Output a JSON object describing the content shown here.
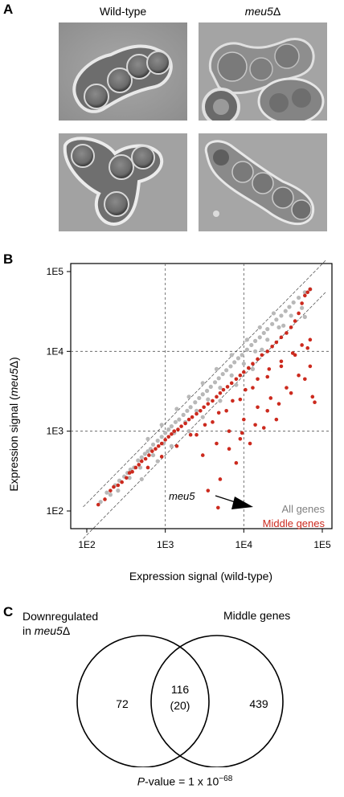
{
  "panel_a": {
    "letter": "A",
    "col1_title": "Wild-type",
    "col2_title_main": "meu5",
    "col2_title_suffix": "Δ"
  },
  "panel_b": {
    "letter": "B",
    "annotation": "meu5",
    "legend_all": "All genes",
    "legend_middle": "Middle genes",
    "colors": {
      "all": "#b8b8b8",
      "middle": "#cc2a1e"
    }
  },
  "chart_data": {
    "type": "scatter",
    "x_scale": "log",
    "y_scale": "log",
    "xlim": [
      100,
      100000
    ],
    "ylim": [
      100,
      100000
    ],
    "xlabel": "Expression signal (wild-type)",
    "ylabel_main": "Expression signal (",
    "ylabel_italic": "meu5",
    "ylabel_end": "Δ)",
    "x_ticks": [
      "1E2",
      "1E3",
      "1E4",
      "1E5"
    ],
    "y_ticks": [
      "1E2",
      "1E3",
      "1E4",
      "1E5"
    ],
    "series": [
      {
        "name": "All genes",
        "color": "#b8b8b8",
        "points": [
          [
            150,
            130
          ],
          [
            180,
            170
          ],
          [
            200,
            160
          ],
          [
            230,
            210
          ],
          [
            260,
            240
          ],
          [
            300,
            270
          ],
          [
            330,
            300
          ],
          [
            360,
            330
          ],
          [
            400,
            350
          ],
          [
            450,
            430
          ],
          [
            500,
            470
          ],
          [
            550,
            520
          ],
          [
            600,
            560
          ],
          [
            650,
            600
          ],
          [
            700,
            680
          ],
          [
            800,
            760
          ],
          [
            900,
            850
          ],
          [
            1000,
            950
          ],
          [
            1100,
            1050
          ],
          [
            1200,
            1150
          ],
          [
            1350,
            1300
          ],
          [
            1500,
            1400
          ],
          [
            1700,
            1600
          ],
          [
            1900,
            1800
          ],
          [
            2100,
            2000
          ],
          [
            2400,
            2300
          ],
          [
            2700,
            2600
          ],
          [
            3000,
            2900
          ],
          [
            3400,
            3200
          ],
          [
            3800,
            3600
          ],
          [
            4300,
            4100
          ],
          [
            4800,
            4600
          ],
          [
            5400,
            5200
          ],
          [
            6000,
            5800
          ],
          [
            6800,
            6500
          ],
          [
            7600,
            7300
          ],
          [
            8500,
            8200
          ],
          [
            9500,
            9000
          ],
          [
            11000,
            10500
          ],
          [
            12500,
            12000
          ],
          [
            14000,
            13500
          ],
          [
            16000,
            15000
          ],
          [
            18000,
            17000
          ],
          [
            20000,
            19000
          ],
          [
            23000,
            22000
          ],
          [
            26000,
            25000
          ],
          [
            30000,
            28000
          ],
          [
            34000,
            32000
          ],
          [
            38000,
            36000
          ],
          [
            43000,
            41000
          ],
          [
            50000,
            47000
          ],
          [
            60000,
            55000
          ],
          [
            70000,
            60000
          ],
          [
            250,
            180
          ],
          [
            350,
            260
          ],
          [
            480,
            350
          ],
          [
            700,
            500
          ],
          [
            950,
            700
          ],
          [
            1300,
            950
          ],
          [
            1800,
            1300
          ],
          [
            2500,
            1800
          ],
          [
            3500,
            2500
          ],
          [
            5000,
            3500
          ],
          [
            7000,
            5000
          ],
          [
            10000,
            7000
          ],
          [
            14000,
            10000
          ],
          [
            20000,
            14000
          ],
          [
            28000,
            20000
          ],
          [
            40000,
            28000
          ],
          [
            600,
            800
          ],
          [
            900,
            1200
          ],
          [
            1400,
            1900
          ],
          [
            2000,
            2700
          ],
          [
            3000,
            4000
          ],
          [
            4500,
            6000
          ],
          [
            7000,
            9000
          ],
          [
            11000,
            14000
          ],
          [
            16000,
            20000
          ],
          [
            24000,
            30000
          ],
          [
            500,
            250
          ],
          [
            800,
            420
          ],
          [
            1200,
            650
          ],
          [
            2000,
            1000
          ],
          [
            3000,
            1500
          ],
          [
            5000,
            2400
          ],
          [
            8000,
            3800
          ],
          [
            13000,
            6000
          ],
          [
            17000,
            10500
          ],
          [
            32000,
            21000
          ],
          [
            55000,
            35000
          ],
          [
            60000,
            27000
          ]
        ]
      },
      {
        "name": "Middle genes",
        "color": "#cc2a1e",
        "points": [
          [
            140,
            120
          ],
          [
            170,
            140
          ],
          [
            200,
            180
          ],
          [
            220,
            200
          ],
          [
            250,
            210
          ],
          [
            280,
            230
          ],
          [
            320,
            260
          ],
          [
            350,
            300
          ],
          [
            380,
            310
          ],
          [
            420,
            350
          ],
          [
            460,
            380
          ],
          [
            500,
            420
          ],
          [
            560,
            450
          ],
          [
            620,
            500
          ],
          [
            680,
            560
          ],
          [
            750,
            600
          ],
          [
            820,
            650
          ],
          [
            900,
            700
          ],
          [
            1000,
            780
          ],
          [
            1100,
            850
          ],
          [
            1200,
            920
          ],
          [
            1300,
            1000
          ],
          [
            1450,
            1050
          ],
          [
            1600,
            1150
          ],
          [
            1800,
            1250
          ],
          [
            2000,
            1400
          ],
          [
            2200,
            1500
          ],
          [
            2500,
            1650
          ],
          [
            2800,
            1800
          ],
          [
            3100,
            2000
          ],
          [
            3500,
            2200
          ],
          [
            4000,
            2400
          ],
          [
            4500,
            2700
          ],
          [
            5000,
            3000
          ],
          [
            5500,
            3300
          ],
          [
            6200,
            3600
          ],
          [
            7000,
            4000
          ],
          [
            8000,
            4500
          ],
          [
            9000,
            5000
          ],
          [
            10000,
            5500
          ],
          [
            11500,
            6200
          ],
          [
            13000,
            7000
          ],
          [
            15000,
            8000
          ],
          [
            17000,
            9000
          ],
          [
            20000,
            10000
          ],
          [
            23000,
            11500
          ],
          [
            26000,
            13000
          ],
          [
            30000,
            15000
          ],
          [
            35000,
            17000
          ],
          [
            40000,
            20000
          ],
          [
            45000,
            24000
          ],
          [
            50000,
            30000
          ],
          [
            55000,
            40000
          ],
          [
            60000,
            50000
          ],
          [
            65000,
            55000
          ],
          [
            70000,
            60000
          ],
          [
            600,
            350
          ],
          [
            900,
            480
          ],
          [
            1400,
            650
          ],
          [
            2100,
            900
          ],
          [
            3200,
            1200
          ],
          [
            4800,
            1700
          ],
          [
            7200,
            2400
          ],
          [
            10500,
            3300
          ],
          [
            15000,
            4500
          ],
          [
            21000,
            6000
          ],
          [
            30000,
            7500
          ],
          [
            42000,
            9500
          ],
          [
            55000,
            12000
          ],
          [
            70000,
            14000
          ],
          [
            2500,
            900
          ],
          [
            4000,
            1300
          ],
          [
            6000,
            1800
          ],
          [
            9000,
            2500
          ],
          [
            13000,
            3500
          ],
          [
            20000,
            4800
          ],
          [
            30000,
            6500
          ],
          [
            45000,
            9000
          ],
          [
            65000,
            11000
          ],
          [
            3000,
            500
          ],
          [
            4500,
            700
          ],
          [
            6500,
            1000
          ],
          [
            10000,
            1400
          ],
          [
            15000,
            2000
          ],
          [
            22000,
            2600
          ],
          [
            35000,
            3500
          ],
          [
            50000,
            5000
          ],
          [
            70000,
            6500
          ],
          [
            80000,
            2300
          ],
          [
            75000,
            2700
          ],
          [
            20000,
            1800
          ],
          [
            12000,
            700
          ],
          [
            8000,
            400
          ],
          [
            5000,
            250
          ],
          [
            3500,
            180
          ],
          [
            6500,
            600
          ],
          [
            9500,
            950
          ],
          [
            26000,
            1400
          ],
          [
            18000,
            1100
          ],
          [
            40000,
            3000
          ],
          [
            60000,
            4500
          ],
          [
            28000,
            2200
          ],
          [
            14000,
            1200
          ],
          [
            9000,
            800
          ],
          [
            4700,
            110
          ]
        ]
      }
    ]
  },
  "panel_c": {
    "letter": "C",
    "left_label_line1": "Downregulated",
    "left_label_line2_pre": "in ",
    "left_label_line2_italic": "meu5",
    "left_label_line2_end": "Δ",
    "right_label": "Middle genes",
    "left_only": "72",
    "overlap": "116",
    "overlap_sub": "(20)",
    "right_only": "439",
    "pvalue_italic": "P",
    "pvalue_text": "-value = 1 x 10",
    "pvalue_exp": "−68"
  }
}
